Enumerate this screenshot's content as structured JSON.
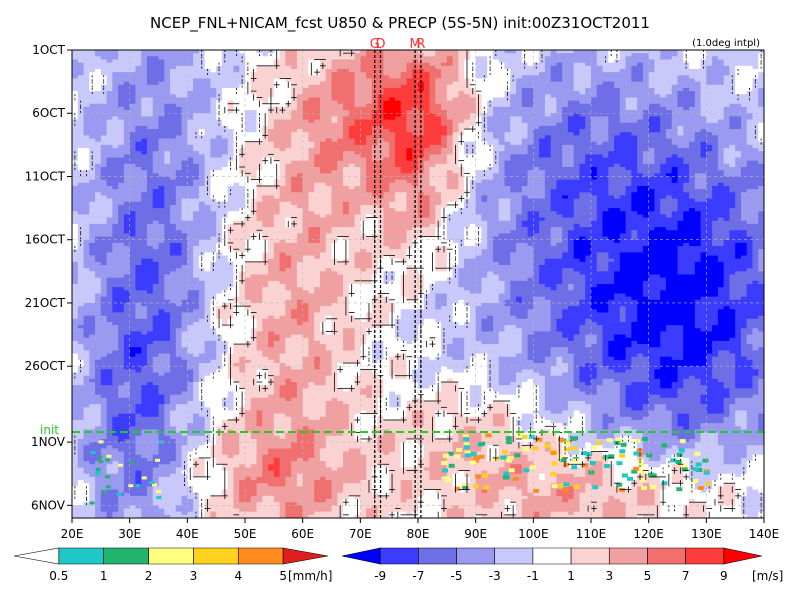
{
  "chart_data": {
    "type": "heatmap",
    "title": "NCEP_FNL+NICAM_fcst U850 & PRECP (5S-5N) init:00Z31OCT2011",
    "subtitle": "(1.0deg intpl)",
    "x_ticks": [
      "20E",
      "30E",
      "40E",
      "50E",
      "60E",
      "70E",
      "80E",
      "90E",
      "100E",
      "110E",
      "120E",
      "130E",
      "140E"
    ],
    "x_range": [
      20,
      140
    ],
    "y_ticks": [
      "1OCT",
      "6OCT",
      "11OCT",
      "16OCT",
      "21OCT",
      "26OCT",
      "1NOV",
      "6NOV"
    ],
    "y_range": [
      "1OCT2011",
      "7NOV2011"
    ],
    "init_label": "init",
    "init_date": "31OCT2011",
    "markers": [
      {
        "label": "G",
        "lon": 72.5
      },
      {
        "label": "D",
        "lon": 73.5
      },
      {
        "label": "M",
        "lon": 79.5
      },
      {
        "label": "R",
        "lon": 80.5
      }
    ],
    "precip_legend": {
      "levels": [
        "0.5",
        "1",
        "2",
        "3",
        "4",
        "5"
      ],
      "unit": "[mm/h]",
      "colors": [
        "#ffffff",
        "#1ec8c8",
        "#22b46e",
        "#ffff80",
        "#ffd21e",
        "#ff8c1e",
        "#e01e1e"
      ]
    },
    "u850_legend": {
      "levels": [
        "-9",
        "-7",
        "-5",
        "-3",
        "-1",
        "1",
        "3",
        "5",
        "7",
        "9"
      ],
      "unit": "[m/s]",
      "colors": [
        "#0000ff",
        "#3c3cff",
        "#6e6ee6",
        "#9a9af0",
        "#c8c8fa",
        "#ffffff",
        "#fad2d2",
        "#f0a0a0",
        "#f07070",
        "#ff3c3c",
        "#ff0000"
      ]
    }
  }
}
